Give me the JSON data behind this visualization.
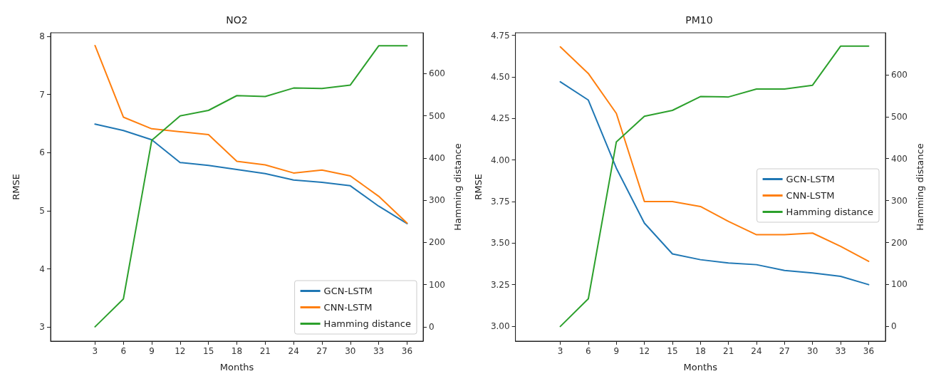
{
  "chart_data": [
    {
      "type": "line",
      "title": "NO2",
      "xlabel": "Months",
      "ylabel": "RMSE",
      "y2label": "Hamming distance",
      "x": [
        3,
        6,
        9,
        12,
        15,
        18,
        21,
        24,
        27,
        30,
        33,
        36
      ],
      "xlim": [
        -1.7,
        37.7
      ],
      "xticks": [
        3,
        6,
        9,
        12,
        15,
        18,
        21,
        24,
        27,
        30,
        33,
        36
      ],
      "ylim": [
        2.76,
        8.06
      ],
      "yticks": [
        3,
        4,
        5,
        6,
        7,
        8
      ],
      "y2lim": [
        -34,
        697
      ],
      "y2ticks": [
        0,
        100,
        200,
        300,
        400,
        500,
        600
      ],
      "grid": false,
      "legend": "bottom right",
      "line_style": "solid",
      "marker": "none",
      "series": [
        {
          "name": "GCN-LSTM",
          "color": "#1f77b4",
          "values": [
            6.49,
            6.38,
            6.22,
            5.83,
            5.78,
            5.71,
            5.64,
            5.53,
            5.49,
            5.43,
            5.08,
            4.78
          ]
        },
        {
          "name": "CNN-LSTM",
          "color": "#ff7f0e",
          "values": [
            7.84,
            6.61,
            6.41,
            6.36,
            6.31,
            5.85,
            5.79,
            5.65,
            5.7,
            5.6,
            5.25,
            4.79
          ]
        },
        {
          "name": "Hamming distance",
          "color": "#2ca02c",
          "axis": "y2",
          "values": [
            0,
            66,
            442,
            500,
            513,
            548,
            546,
            566,
            565,
            573,
            666,
            666
          ]
        }
      ]
    },
    {
      "type": "line",
      "title": "PM10",
      "xlabel": "Months",
      "ylabel": "RMSE",
      "y2label": "Hamming distance",
      "x": [
        3,
        6,
        9,
        12,
        15,
        18,
        21,
        24,
        27,
        30,
        33,
        36
      ],
      "xlim": [
        -1.8,
        37.8
      ],
      "xticks": [
        3,
        6,
        9,
        12,
        15,
        18,
        21,
        24,
        27,
        30,
        33,
        36
      ],
      "ylim": [
        2.91,
        4.765
      ],
      "yticks": [
        {
          "value": 3,
          "label": "3.00"
        },
        3.25,
        {
          "value": 3.5,
          "label": "3.50"
        },
        3.75,
        {
          "value": 4,
          "label": "4.00"
        },
        4.25,
        {
          "value": 4.5,
          "label": "4.50"
        },
        4.75
      ],
      "y2lim": [
        -35,
        700
      ],
      "y2ticks": [
        0,
        100,
        200,
        300,
        400,
        500,
        600
      ],
      "grid": false,
      "legend": "right",
      "line_style": "solid",
      "marker": "none",
      "series": [
        {
          "name": "GCN-LSTM",
          "color": "#1f77b4",
          "values": [
            4.47,
            4.36,
            3.95,
            3.62,
            3.435,
            3.4,
            3.38,
            3.37,
            3.335,
            3.32,
            3.3,
            3.25
          ]
        },
        {
          "name": "CNN-LSTM",
          "color": "#ff7f0e",
          "values": [
            4.68,
            4.52,
            4.28,
            3.75,
            3.75,
            3.72,
            3.63,
            3.55,
            3.55,
            3.56,
            3.48,
            3.39
          ]
        },
        {
          "name": "Hamming distance",
          "color": "#2ca02c",
          "axis": "y2",
          "values": [
            0,
            66,
            440,
            501,
            515,
            548,
            547,
            566,
            566,
            575,
            668,
            668
          ]
        }
      ]
    }
  ]
}
